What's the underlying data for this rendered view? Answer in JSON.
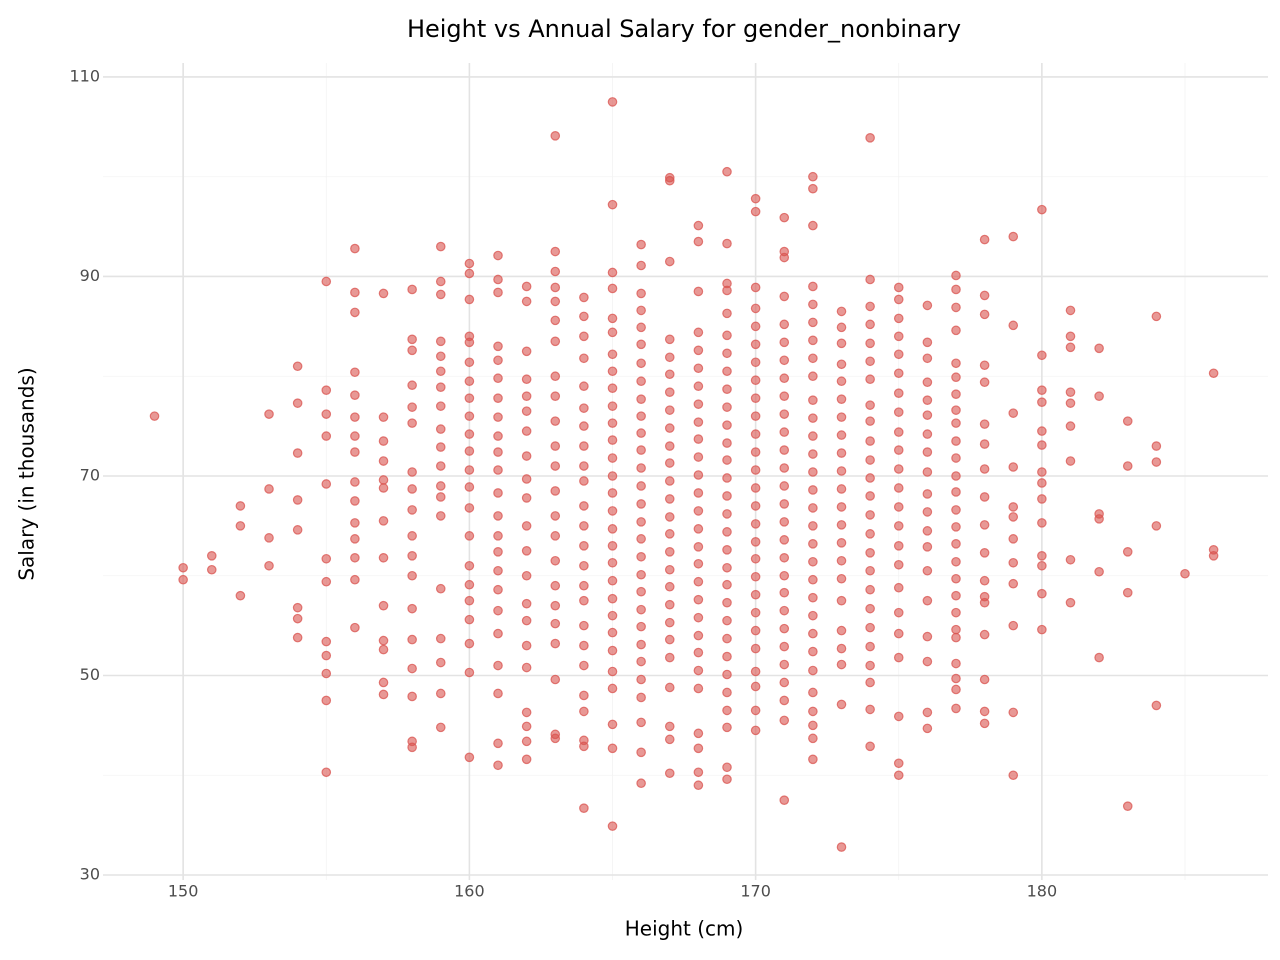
{
  "chart_data": {
    "type": "scatter",
    "title": "Height vs Annual Salary for gender_nonbinary",
    "x_label": "Height (cm)",
    "y_label": "Salary (in thousands)",
    "color": "#d9534f",
    "grid": true,
    "xlim": [
      147.2,
      187.9
    ],
    "ylim": [
      29.5,
      111.4
    ],
    "xticks": [
      150,
      160,
      170,
      180
    ],
    "yticks": [
      30,
      50,
      70,
      90,
      110
    ],
    "xminorticks": [
      155,
      165,
      175,
      185
    ],
    "yminorticks": [
      40,
      60,
      80,
      100
    ],
    "x": [
      149,
      150,
      150,
      151,
      151,
      152,
      152,
      152,
      153,
      153,
      153,
      153,
      154,
      154,
      154,
      154,
      154,
      154,
      154,
      154,
      155,
      155,
      155,
      155,
      155,
      155,
      155,
      155,
      155,
      155,
      155,
      155,
      156,
      156,
      156,
      156,
      156,
      156,
      156,
      156,
      156,
      156,
      156,
      156,
      156,
      156,
      156,
      157,
      157,
      157,
      157,
      157,
      157,
      157,
      157,
      157,
      157,
      157,
      157,
      157,
      158,
      158,
      158,
      158,
      158,
      158,
      158,
      158,
      158,
      158,
      158,
      158,
      158,
      158,
      158,
      158,
      158,
      158,
      159,
      159,
      159,
      159,
      159,
      159,
      159,
      159,
      159,
      159,
      159,
      159,
      159,
      159,
      159,
      159,
      159,
      159,
      159,
      160,
      160,
      160,
      160,
      160,
      160,
      160,
      160,
      160,
      160,
      160,
      160,
      160,
      160,
      160,
      160,
      160,
      160,
      160,
      160,
      160,
      160,
      161,
      161,
      161,
      161,
      161,
      161,
      161,
      161,
      161,
      161,
      161,
      161,
      161,
      161,
      161,
      161,
      161,
      161,
      161,
      161,
      161,
      161,
      161,
      162,
      162,
      162,
      162,
      162,
      162,
      162,
      162,
      162,
      162,
      162,
      162,
      162,
      162,
      162,
      162,
      162,
      162,
      162,
      162,
      162,
      163,
      163,
      163,
      163,
      163,
      163,
      163,
      163,
      163,
      163,
      163,
      163,
      163,
      163,
      163,
      163,
      163,
      163,
      163,
      163,
      163,
      163,
      163,
      164,
      164,
      164,
      164,
      164,
      164,
      164,
      164,
      164,
      164,
      164,
      164,
      164,
      164,
      164,
      164,
      164,
      164,
      164,
      164,
      164,
      164,
      164,
      164,
      165,
      165,
      165,
      165,
      165,
      165,
      165,
      165,
      165,
      165,
      165,
      165,
      165,
      165,
      165,
      165,
      165,
      165,
      165,
      165,
      165,
      165,
      165,
      165,
      165,
      165,
      165,
      165,
      165,
      166,
      166,
      166,
      166,
      166,
      166,
      166,
      166,
      166,
      166,
      166,
      166,
      166,
      166,
      166,
      166,
      166,
      166,
      166,
      166,
      166,
      166,
      166,
      166,
      166,
      166,
      166,
      166,
      166,
      167,
      167,
      167,
      167,
      167,
      167,
      167,
      167,
      167,
      167,
      167,
      167,
      167,
      167,
      167,
      167,
      167,
      167,
      167,
      167,
      167,
      167,
      167,
      167,
      167,
      167,
      168,
      168,
      168,
      168,
      168,
      168,
      168,
      168,
      168,
      168,
      168,
      168,
      168,
      168,
      168,
      168,
      168,
      168,
      168,
      168,
      168,
      168,
      168,
      168,
      168,
      168,
      168,
      168,
      169,
      169,
      169,
      169,
      169,
      169,
      169,
      169,
      169,
      169,
      169,
      169,
      169,
      169,
      169,
      169,
      169,
      169,
      169,
      169,
      169,
      169,
      169,
      169,
      169,
      169,
      169,
      169,
      169,
      169,
      170,
      170,
      170,
      170,
      170,
      170,
      170,
      170,
      170,
      170,
      170,
      170,
      170,
      170,
      170,
      170,
      170,
      170,
      170,
      170,
      170,
      170,
      170,
      170,
      170,
      170,
      170,
      171,
      171,
      171,
      171,
      171,
      171,
      171,
      171,
      171,
      171,
      171,
      171,
      171,
      171,
      171,
      171,
      171,
      171,
      171,
      171,
      171,
      171,
      171,
      171,
      171,
      171,
      171,
      171,
      172,
      172,
      172,
      172,
      172,
      172,
      172,
      172,
      172,
      172,
      172,
      172,
      172,
      172,
      172,
      172,
      172,
      172,
      172,
      172,
      172,
      172,
      172,
      172,
      172,
      172,
      172,
      172,
      172,
      172,
      173,
      173,
      173,
      173,
      173,
      173,
      173,
      173,
      173,
      173,
      173,
      173,
      173,
      173,
      173,
      173,
      173,
      173,
      173,
      173,
      173,
      173,
      174,
      174,
      174,
      174,
      174,
      174,
      174,
      174,
      174,
      174,
      174,
      174,
      174,
      174,
      174,
      174,
      174,
      174,
      174,
      174,
      174,
      174,
      174,
      174,
      174,
      175,
      175,
      175,
      175,
      175,
      175,
      175,
      175,
      175,
      175,
      175,
      175,
      175,
      175,
      175,
      175,
      175,
      175,
      175,
      175,
      175,
      175,
      175,
      176,
      176,
      176,
      176,
      176,
      176,
      176,
      176,
      176,
      176,
      176,
      176,
      176,
      176,
      176,
      176,
      176,
      176,
      176,
      177,
      177,
      177,
      177,
      177,
      177,
      177,
      177,
      177,
      177,
      177,
      177,
      177,
      177,
      177,
      177,
      177,
      177,
      177,
      177,
      177,
      177,
      177,
      177,
      177,
      177,
      178,
      178,
      178,
      178,
      178,
      178,
      178,
      178,
      178,
      178,
      178,
      178,
      178,
      178,
      178,
      178,
      178,
      178,
      179,
      179,
      179,
      179,
      179,
      179,
      179,
      179,
      179,
      179,
      179,
      179,
      180,
      180,
      180,
      180,
      180,
      180,
      180,
      180,
      180,
      180,
      180,
      180,
      180,
      180,
      181,
      181,
      181,
      181,
      181,
      181,
      181,
      181,
      181,
      182,
      182,
      182,
      182,
      182,
      182,
      183,
      183,
      183,
      183,
      183,
      184,
      184,
      184,
      184,
      184,
      185,
      186,
      186,
      186
    ],
    "values": [
      76,
      60.8,
      59.6,
      62,
      60.6,
      67,
      65,
      58,
      76.2,
      68.7,
      63.8,
      61,
      81,
      77.3,
      72.3,
      67.6,
      64.6,
      56.8,
      55.7,
      53.8,
      89.5,
      78.6,
      76.2,
      74,
      69.2,
      61.7,
      59.4,
      53.4,
      52,
      50.2,
      47.5,
      40.3,
      92.8,
      88.4,
      86.4,
      80.4,
      78.1,
      75.9,
      74,
      72.4,
      69.4,
      67.5,
      65.3,
      63.7,
      61.8,
      59.6,
      54.8,
      88.3,
      75.9,
      73.5,
      71.5,
      69.6,
      68.8,
      65.5,
      61.8,
      57,
      53.5,
      52.6,
      49.3,
      48.1,
      88.7,
      83.7,
      82.6,
      79.1,
      76.9,
      75.3,
      70.4,
      68.7,
      66.6,
      64,
      62,
      60,
      56.7,
      53.6,
      50.7,
      47.9,
      43.4,
      42.8,
      93,
      89.5,
      88.2,
      83.5,
      82,
      80.5,
      78.9,
      77,
      74.7,
      72.9,
      71,
      69,
      67.9,
      66,
      58.7,
      53.7,
      51.3,
      48.2,
      44.8,
      91.3,
      90.3,
      87.7,
      84,
      83.4,
      81.4,
      79.5,
      77.8,
      76,
      74.2,
      72.5,
      70.6,
      68.9,
      66.8,
      64,
      61,
      59.1,
      57.5,
      55.6,
      53.2,
      50.3,
      41.8,
      92.1,
      89.7,
      88.4,
      83,
      81.6,
      79.8,
      77.8,
      75.9,
      74,
      72.4,
      70.6,
      68.3,
      66,
      64,
      62.4,
      60.5,
      58.6,
      56.5,
      54.2,
      51,
      48.2,
      43.2,
      41,
      89,
      87.5,
      82.5,
      79.7,
      78,
      76.5,
      74.5,
      72,
      69.7,
      67.8,
      65,
      62.5,
      60,
      57.2,
      55.5,
      53,
      50.8,
      46.3,
      44.9,
      43.4,
      41.6,
      104.1,
      92.5,
      90.5,
      88.9,
      87.5,
      85.6,
      83.5,
      80,
      78,
      75.5,
      73,
      71,
      68.5,
      66,
      64,
      61.5,
      59,
      57,
      55.2,
      53.2,
      49.6,
      44.1,
      43.7,
      87.9,
      86,
      84,
      81.8,
      79,
      76.8,
      75,
      73,
      71,
      69.5,
      67,
      65,
      63,
      61,
      59,
      57.5,
      55,
      53,
      51,
      48,
      46.4,
      43.5,
      42.9,
      36.7,
      107.5,
      97.2,
      90.4,
      88.8,
      85.8,
      84.4,
      82.2,
      80.5,
      78.8,
      77,
      75.3,
      73.6,
      71.8,
      70,
      68.3,
      66.5,
      64.7,
      63,
      61.3,
      59.5,
      57.7,
      56,
      54.3,
      52.5,
      50.4,
      48.7,
      45.1,
      42.7,
      34.9,
      93.2,
      91.1,
      88.3,
      86.6,
      84.9,
      83.2,
      81.3,
      79.5,
      77.7,
      76,
      74.3,
      72.6,
      70.8,
      69,
      67.2,
      65.4,
      63.7,
      61.9,
      60.1,
      58.4,
      56.6,
      54.9,
      53.1,
      51.4,
      49.6,
      47.8,
      45.3,
      42.3,
      39.2,
      99.9,
      99.6,
      91.5,
      83.7,
      81.9,
      80.2,
      78.4,
      76.6,
      74.8,
      73,
      71.3,
      69.5,
      67.7,
      65.9,
      64.2,
      62.4,
      60.6,
      58.9,
      57.1,
      55.3,
      53.6,
      51.8,
      48.8,
      44.9,
      43.6,
      40.2,
      95.1,
      93.5,
      88.5,
      84.4,
      82.6,
      80.8,
      79,
      77.2,
      75.4,
      73.7,
      71.9,
      70.1,
      68.3,
      66.5,
      64.7,
      62.9,
      61.2,
      59.4,
      57.6,
      55.8,
      54,
      52.3,
      50.5,
      48.7,
      44.2,
      42.7,
      40.3,
      39,
      100.5,
      93.3,
      89.3,
      88.6,
      86.3,
      84.1,
      82.3,
      80.5,
      78.7,
      76.9,
      75.1,
      73.3,
      71.6,
      69.8,
      68,
      66.2,
      64.4,
      62.6,
      60.8,
      59.1,
      57.3,
      55.5,
      53.7,
      51.9,
      50.1,
      48.3,
      46.5,
      44.8,
      40.8,
      39.6,
      97.8,
      96.5,
      88.9,
      86.8,
      85,
      83.2,
      81.4,
      79.6,
      77.8,
      76,
      74.2,
      72.4,
      70.6,
      68.8,
      67,
      65.2,
      63.4,
      61.7,
      59.9,
      58.1,
      56.3,
      54.5,
      52.7,
      50.4,
      48.9,
      46.5,
      44.5,
      95.9,
      92.5,
      91.9,
      88,
      85.2,
      83.4,
      81.6,
      79.8,
      78,
      76.2,
      74.4,
      72.6,
      70.8,
      69,
      67.2,
      65.4,
      63.6,
      61.8,
      60,
      58.3,
      56.5,
      54.7,
      52.9,
      51.1,
      49.3,
      47.5,
      45.5,
      37.5,
      100,
      98.8,
      95.1,
      89,
      87.2,
      85.4,
      83.6,
      81.8,
      80,
      77.6,
      75.8,
      74,
      72.2,
      70.4,
      68.6,
      66.8,
      65,
      63.2,
      61.4,
      59.6,
      57.8,
      56,
      54.2,
      52.4,
      50.5,
      48.3,
      46.4,
      45,
      43.7,
      41.6,
      86.5,
      84.9,
      83.3,
      81.2,
      79.5,
      77.7,
      75.9,
      74.1,
      72.3,
      70.5,
      68.7,
      66.9,
      65.1,
      63.3,
      61.5,
      59.7,
      57.5,
      54.5,
      52.7,
      51.1,
      47.1,
      32.8,
      103.9,
      89.7,
      87,
      85.2,
      83.3,
      81.5,
      79.7,
      77.1,
      75.5,
      73.5,
      71.6,
      69.8,
      68,
      66.1,
      64.2,
      62.3,
      60.5,
      58.6,
      56.7,
      54.8,
      52.9,
      51,
      49.3,
      46.6,
      42.9,
      88.9,
      87.7,
      85.8,
      84,
      82.2,
      80.3,
      78.3,
      76.4,
      74.4,
      72.6,
      70.7,
      68.8,
      66.9,
      65,
      63,
      61.1,
      58.8,
      56.3,
      54.2,
      51.8,
      45.9,
      41.2,
      40,
      87.1,
      83.4,
      81.8,
      79.4,
      77.6,
      76.1,
      74.2,
      72.4,
      70.4,
      68.2,
      66.4,
      64.5,
      62.9,
      60.5,
      57.5,
      53.9,
      51.4,
      46.3,
      44.7,
      90.1,
      88.7,
      86.9,
      84.6,
      81.3,
      79.9,
      78.2,
      76.6,
      75.3,
      73.5,
      71.8,
      70,
      68.4,
      66.6,
      64.9,
      63.2,
      61.4,
      59.7,
      58,
      56.3,
      54.6,
      53.8,
      51.2,
      49.7,
      48.6,
      46.7,
      93.7,
      88.1,
      86.2,
      81.1,
      79.4,
      75.2,
      73.2,
      70.7,
      67.9,
      65.1,
      62.3,
      59.5,
      57.9,
      57.3,
      54.1,
      49.6,
      46.4,
      45.2,
      94,
      85.1,
      76.3,
      70.9,
      66.9,
      65.9,
      63.7,
      61.3,
      59.2,
      55,
      46.3,
      40,
      96.7,
      82.1,
      78.6,
      77.4,
      74.5,
      73.1,
      70.4,
      69.3,
      67.7,
      65.3,
      62,
      61,
      58.2,
      54.6,
      86.6,
      84,
      82.9,
      78.4,
      77.3,
      75,
      71.5,
      61.6,
      57.3,
      82.8,
      78,
      66.2,
      65.7,
      60.4,
      51.8,
      75.5,
      71,
      62.4,
      58.3,
      36.9,
      86,
      73,
      71.4,
      65,
      47,
      60.2,
      80.3,
      62.6,
      62
    ]
  }
}
